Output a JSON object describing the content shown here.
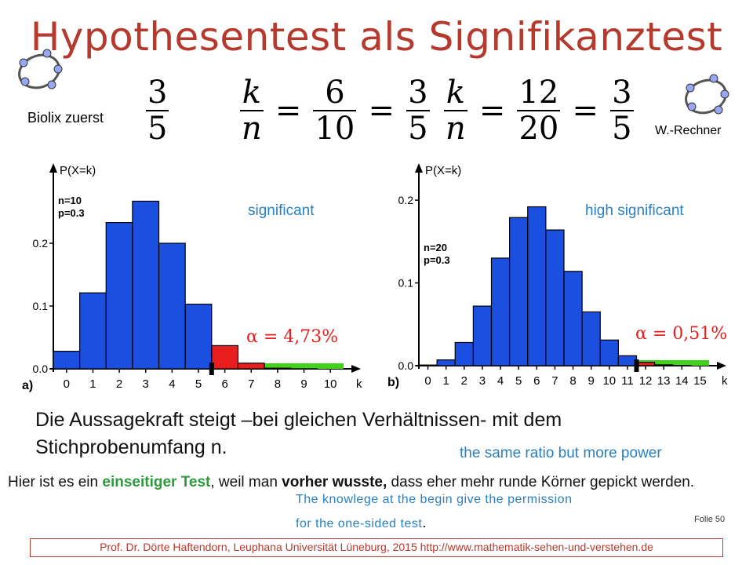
{
  "title": "Hypothesentest als Signifikanztest",
  "biolix_label": "Biolix  zuerst",
  "biolix_fraction": {
    "num": "3",
    "den": "5"
  },
  "formula1": {
    "k": "k",
    "n": "n",
    "eq": "=",
    "f1": {
      "num": "6",
      "den": "10"
    },
    "f2": {
      "num": "3",
      "den": "5"
    }
  },
  "formula2": {
    "k": "k",
    "n": "n",
    "eq": "=",
    "f1": {
      "num": "12",
      "den": "20"
    },
    "f2": {
      "num": "3",
      "den": "5"
    }
  },
  "wrechner_label": "W.-Rechner",
  "chart_data": [
    {
      "type": "bar",
      "panel_label": "a)",
      "ylabel": "P(X=k)",
      "xlabel": "k",
      "params": [
        "n=10",
        "p=0.3"
      ],
      "annotation": "significant",
      "alpha_label": "α = 4,73%",
      "x": [
        0,
        1,
        2,
        3,
        4,
        5,
        6,
        7,
        8,
        9,
        10
      ],
      "values": [
        0.028,
        0.121,
        0.233,
        0.267,
        0.2,
        0.103,
        0.037,
        0.009,
        0.001,
        0.0001,
        0.0
      ],
      "rejection_start": 6,
      "ylim": [
        0,
        0.3
      ],
      "yticks": [
        0.0,
        0.1,
        0.2
      ],
      "ytick_labels": [
        "0.0",
        "0.1",
        "0.2"
      ],
      "xtick_labels": [
        "0",
        "1",
        "2",
        "3",
        "4",
        "5",
        "6",
        "7",
        "8",
        "9",
        "10"
      ],
      "colors": {
        "accept": "#1a4fe0",
        "reject": "#e81e1e",
        "region": "#44d11c"
      }
    },
    {
      "type": "bar",
      "panel_label": "b)",
      "ylabel": "P(X=k)",
      "xlabel": "k",
      "params": [
        "n=20",
        "p=0.3"
      ],
      "annotation": "high significant",
      "alpha_label": "α = 0,51%",
      "x": [
        0,
        1,
        2,
        3,
        4,
        5,
        6,
        7,
        8,
        9,
        10,
        11,
        12,
        13,
        14,
        15
      ],
      "values": [
        0.0008,
        0.007,
        0.028,
        0.072,
        0.13,
        0.179,
        0.192,
        0.164,
        0.114,
        0.065,
        0.031,
        0.012,
        0.004,
        0.001,
        0.0002,
        0.0
      ],
      "rejection_start": 12,
      "ylim": [
        0,
        0.22
      ],
      "yticks": [
        0.0,
        0.1,
        0.2
      ],
      "ytick_labels": [
        "0.0",
        "0.1",
        "0.2"
      ],
      "xtick_labels": [
        "0",
        "1",
        "2",
        "3",
        "4",
        "5",
        "6",
        "7",
        "8",
        "9",
        "10",
        "11",
        "12",
        "13",
        "14",
        "15"
      ],
      "colors": {
        "accept": "#1a4fe0",
        "reject": "#e81e1e",
        "region": "#44d11c"
      }
    }
  ],
  "main_text": "Die Aussagekraft steigt –bei gleichen Verhältnissen- mit dem Stichprobenumfang n.",
  "power_note": "the same ratio but more power",
  "small_text": {
    "part1": "Hier ist es ein ",
    "highlight": "einseitiger Test",
    "part2": ", weil man ",
    "bold": "vorher wusste,",
    "part3": " dass eher mehr runde Körner  gepickt werden."
  },
  "permission_note_1": "The knowlege at the begin give the permission",
  "permission_note_2": "for the one-sided test",
  "permission_note_end": ".",
  "folie": "Folie  50",
  "footer": "Prof. Dr. Dörte Haftendorn, Leuphana Universität Lüneburg, 2015  http://www.mathematik-sehen-und-verstehen.de"
}
